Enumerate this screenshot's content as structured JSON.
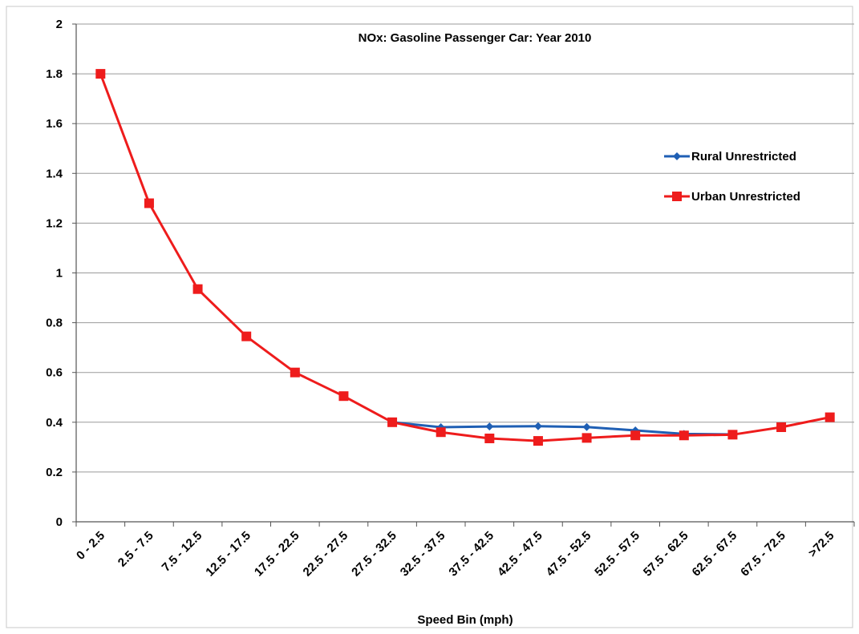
{
  "chart_data": {
    "type": "line",
    "title": "NOx: Gasoline Passenger Car: Year 2010",
    "xlabel": "Speed Bin (mph)",
    "ylabel": "",
    "ylim": [
      0,
      2
    ],
    "yticks": [
      0,
      0.2,
      0.4,
      0.6,
      0.8,
      1,
      1.2,
      1.4,
      1.6,
      1.8,
      2
    ],
    "ytick_labels": [
      "0",
      "0.2",
      "0.4",
      "0.6",
      "0.8",
      "1",
      "1.2",
      "1.4",
      "1.6",
      "1.8",
      "2"
    ],
    "grid": true,
    "legend_position": "right",
    "categories": [
      "0 - 2.5",
      "2.5 - 7.5",
      "7.5 - 12.5",
      "12.5 - 17.5",
      "17.5 - 22.5",
      "22.5 - 27.5",
      "27.5 - 32.5",
      "32.5 - 37.5",
      "37.5 - 42.5",
      "42.5 - 47.5",
      "47.5 - 52.5",
      "52.5 - 57.5",
      "57.5 - 62.5",
      "62.5 - 67.5",
      "67.5 - 72.5",
      ">72.5"
    ],
    "series": [
      {
        "name": "Rural Unrestricted",
        "color": "#1f5fb4",
        "marker": "diamond",
        "values": [
          null,
          null,
          null,
          null,
          null,
          null,
          0.4,
          0.38,
          0.383,
          0.384,
          0.381,
          0.367,
          0.353,
          0.351,
          null,
          null
        ]
      },
      {
        "name": "Urban Unrestricted",
        "color": "#ee1c1c",
        "marker": "square",
        "values": [
          1.8,
          1.28,
          0.935,
          0.745,
          0.6,
          0.505,
          0.4,
          0.36,
          0.335,
          0.325,
          0.337,
          0.347,
          0.347,
          0.35,
          0.38,
          0.42
        ]
      }
    ]
  }
}
